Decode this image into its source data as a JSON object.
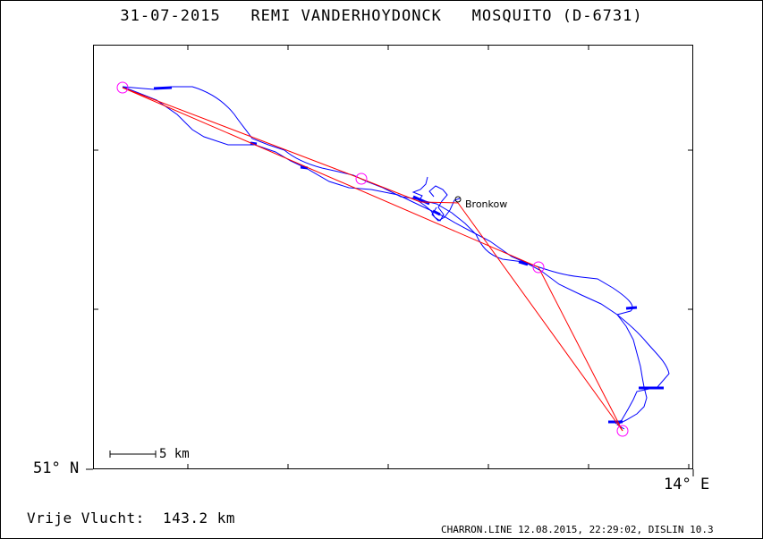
{
  "header": {
    "date": "31-07-2015",
    "pilot": "REMI VANDERHOYDONCK",
    "glider": "MOSQUITO (D-6731)"
  },
  "axes": {
    "lat_label": "51° N",
    "lon_label": "14° E"
  },
  "scale_bar": {
    "label": "5 km"
  },
  "turnpoints": [
    {
      "name": "Bronkow"
    }
  ],
  "footer": {
    "distance_label": "Vrije Vlucht:  143.2 km",
    "credit": "CHARRON.LINE 12.08.2015, 22:29:02, DISLIN 10.3"
  },
  "colors": {
    "track": "#0000ff",
    "task_line": "#ff0000",
    "turnpoint_circle": "#ff00ff",
    "frame": "#000000"
  }
}
